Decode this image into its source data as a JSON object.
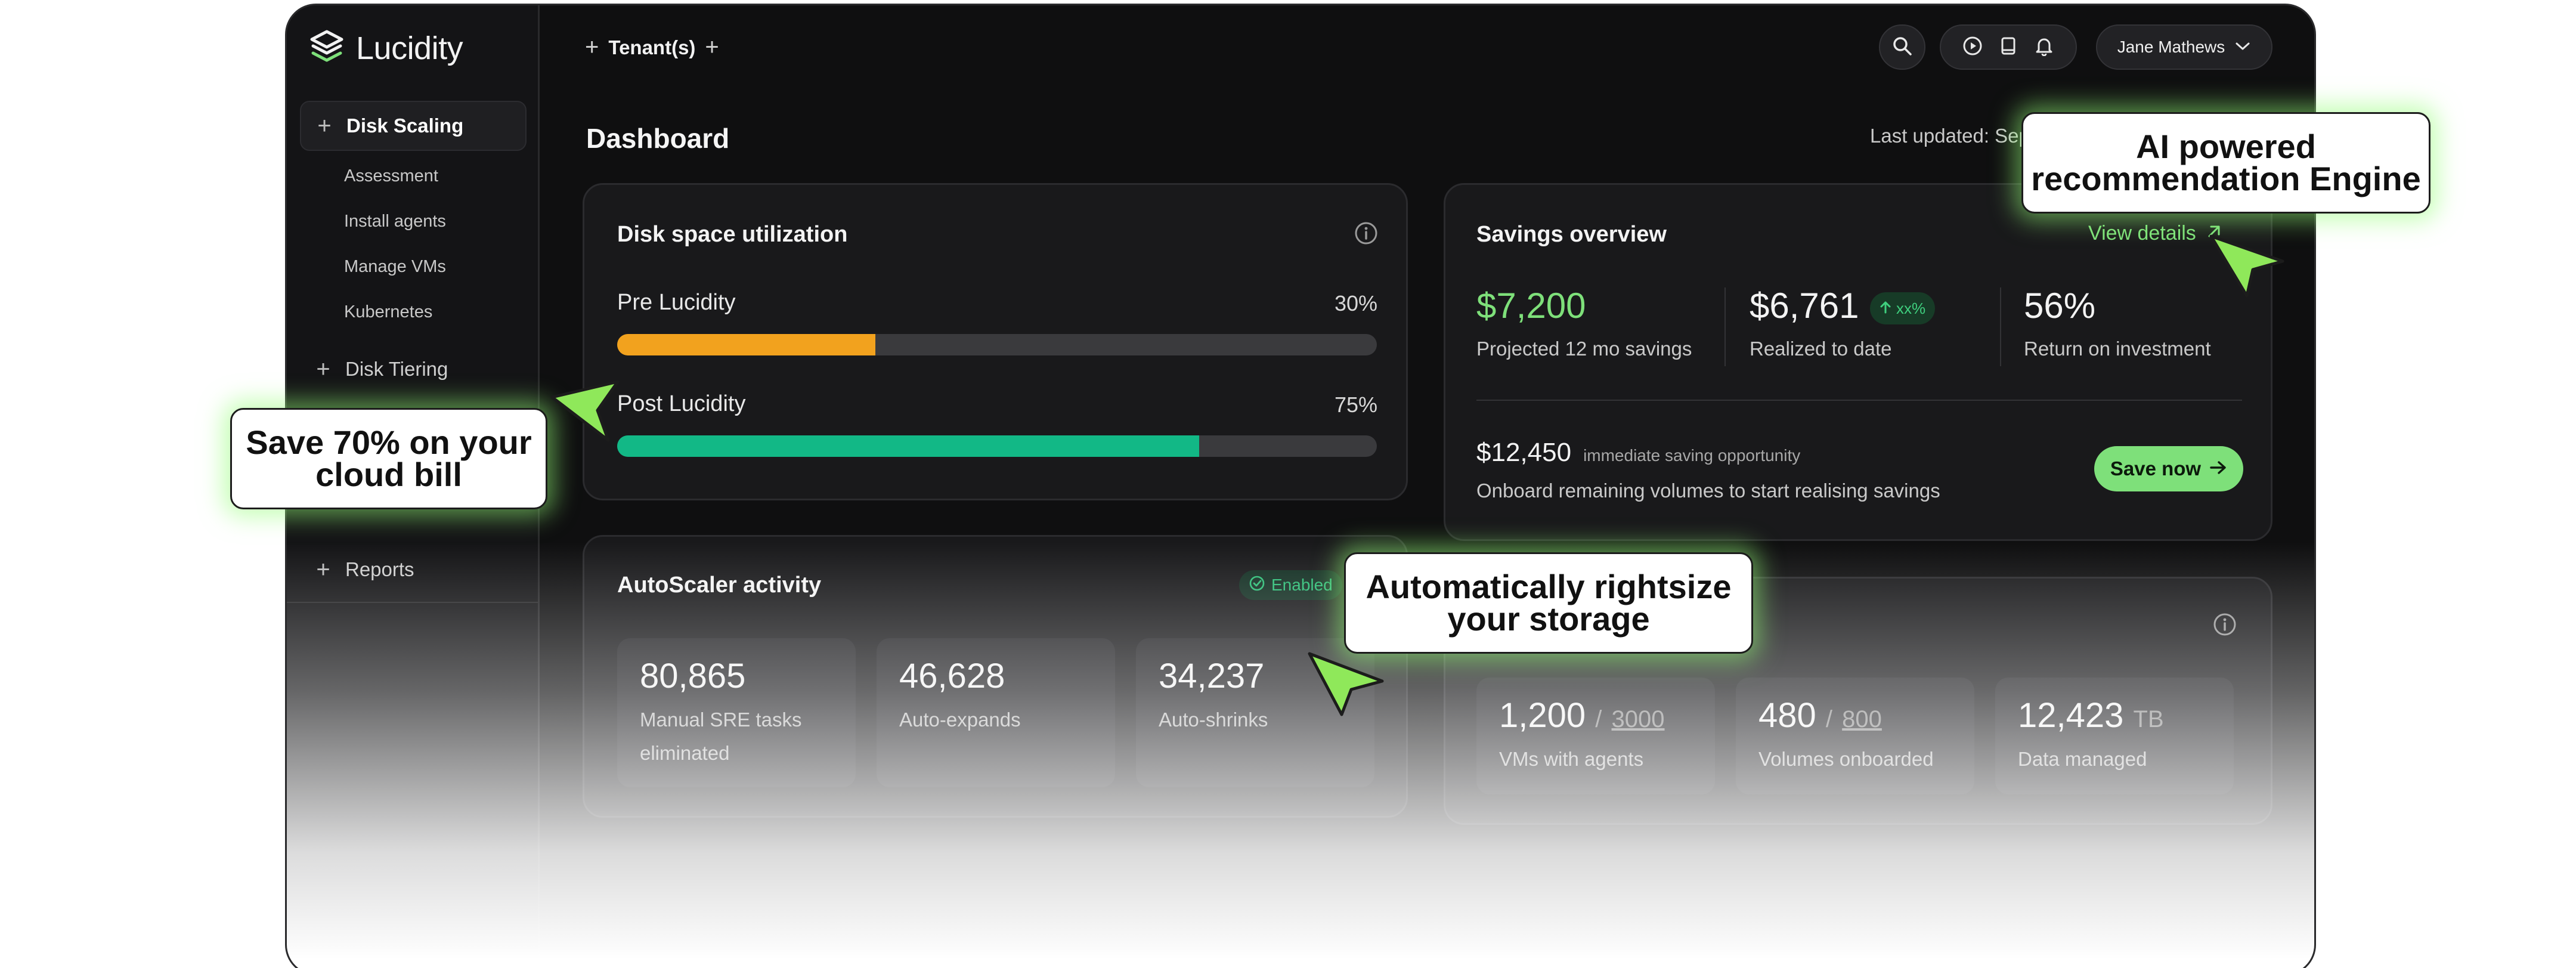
{
  "app": {
    "name": "Lucidity"
  },
  "sidebar": {
    "sections": [
      {
        "label": "Disk Scaling",
        "active": true,
        "items": [
          "Assessment",
          "Install agents",
          "Manage VMs",
          "Kubernetes"
        ]
      },
      {
        "label": "Disk Tiering",
        "active": false
      },
      {
        "label": "Reports",
        "active": false
      }
    ]
  },
  "topbar": {
    "tenant_label": "Tenant(s)",
    "user_name": "Jane Mathews"
  },
  "page": {
    "title": "Dashboard",
    "last_updated": "Last updated: Sep"
  },
  "disk_space": {
    "title": "Disk space utilization",
    "rows": [
      {
        "label": "Pre Lucidity",
        "value": "30%",
        "fill_fraction": 0.34,
        "color": "#f2a21e"
      },
      {
        "label": "Post Lucidity",
        "value": "75%",
        "fill_fraction": 0.766,
        "color": "#12b886"
      }
    ]
  },
  "savings": {
    "title": "Savings overview",
    "view_details": "View details",
    "metrics": [
      {
        "value": "$7,200",
        "label": "Projected 12 mo savings"
      },
      {
        "value": "$6,761",
        "badge": "xx%",
        "label": "Realized to date"
      },
      {
        "value": "56%",
        "label": "Return on investment"
      }
    ],
    "opportunity_value": "$12,450",
    "opportunity_label": "immediate saving opportunity",
    "opportunity_desc": "Onboard remaining volumes to start realising savings",
    "save_button": "Save now"
  },
  "autoscaler": {
    "title": "AutoScaler activity",
    "status": "Enabled",
    "stats": [
      {
        "value": "80,865",
        "label_line1": "Manual SRE tasks",
        "label_line2": "eliminated"
      },
      {
        "value": "46,628",
        "label_line1": "Auto-expands"
      },
      {
        "value": "34,237",
        "label_line1": "Auto-shrinks"
      }
    ]
  },
  "onboarding": {
    "stats": [
      {
        "value": "1,200",
        "suffix_sep": "/",
        "suffix": "3000",
        "label": "VMs with agents"
      },
      {
        "value": "480",
        "suffix_sep": "/",
        "suffix": "800",
        "label": "Volumes onboarded"
      },
      {
        "value": "12,423",
        "unit": "TB",
        "label": "Data managed"
      }
    ]
  },
  "callouts": {
    "ai_line1": "AI powered",
    "ai_line2": "recommendation Engine",
    "save_line1": "Save 70% on your",
    "save_line2": "cloud bill",
    "auto_line1": "Automatically rightsize",
    "auto_line2": "your storage"
  },
  "colors": {
    "accent_green": "#7ee07a",
    "cursor_green": "#8fe85a",
    "bg": "#0f0f10"
  }
}
